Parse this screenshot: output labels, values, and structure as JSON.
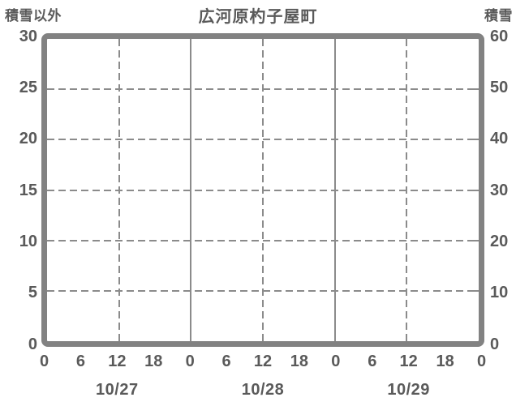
{
  "chart_data": {
    "type": "line",
    "title": "広河原杓子屋町",
    "left_axis": {
      "label": "積雪以外",
      "min": 0,
      "max": 30,
      "tick_step": 5,
      "ticks": [
        "30",
        "25",
        "20",
        "15",
        "10",
        "5",
        "0"
      ]
    },
    "right_axis": {
      "label": "積雪",
      "min": 0,
      "max": 60,
      "tick_step": 10,
      "ticks": [
        "60",
        "50",
        "40",
        "30",
        "20",
        "10",
        "0"
      ]
    },
    "x_axis": {
      "hour_ticks": [
        "0",
        "6",
        "12",
        "18",
        "0",
        "6",
        "12",
        "18",
        "0",
        "6",
        "12",
        "18",
        "0"
      ],
      "date_labels": [
        "10/27",
        "10/28",
        "10/29"
      ]
    },
    "grid": {
      "horizontal_style": "dashed",
      "noon_line_style": "dashed",
      "midnight_line_style": "solid",
      "legend": "none"
    },
    "series": []
  },
  "colors": {
    "background": "#ffffff",
    "frame": "#828282",
    "grid": "#8b8b8b",
    "text": "#5a5a5a"
  }
}
